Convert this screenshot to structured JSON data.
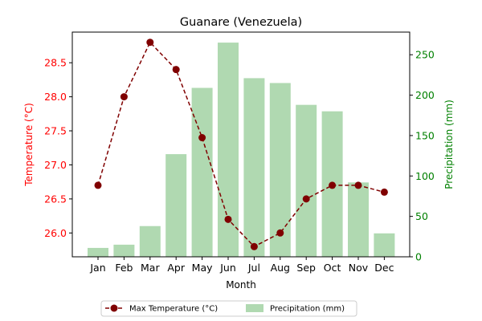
{
  "chart_data": {
    "type": "bar",
    "title": "Guanare (Venezuela)",
    "xlabel": "Month",
    "ylabel_left": "Temperature (°C)",
    "ylabel_right": "Precipitation (mm)",
    "categories": [
      "Jan",
      "Feb",
      "Mar",
      "Apr",
      "May",
      "Jun",
      "Jul",
      "Aug",
      "Sep",
      "Oct",
      "Nov",
      "Dec"
    ],
    "series": [
      {
        "name": "Max Temperature (°C)",
        "type": "line",
        "axis": "left",
        "color": "#800000",
        "style": "dashed",
        "marker": "circle",
        "values": [
          26.7,
          28.0,
          28.8,
          28.4,
          27.4,
          26.2,
          25.8,
          26.0,
          26.5,
          26.7,
          26.7,
          26.6
        ]
      },
      {
        "name": "Precipitation (mm)",
        "type": "bar",
        "axis": "right",
        "color": "#b0d9b1",
        "values": [
          11,
          15,
          38,
          127,
          209,
          265,
          221,
          215,
          188,
          180,
          92,
          29
        ]
      }
    ],
    "ylim_left": [
      25.65,
      28.95
    ],
    "yticks_left": [
      "26.0",
      "26.5",
      "27.0",
      "27.5",
      "28.0",
      "28.5"
    ],
    "ylim_right": [
      0,
      278
    ],
    "yticks_right": [
      "0",
      "50",
      "100",
      "150",
      "200",
      "250"
    ],
    "left_axis_color": "#ff0000",
    "right_axis_color": "#008000",
    "legend_position": "bottom-center",
    "grid": false
  }
}
